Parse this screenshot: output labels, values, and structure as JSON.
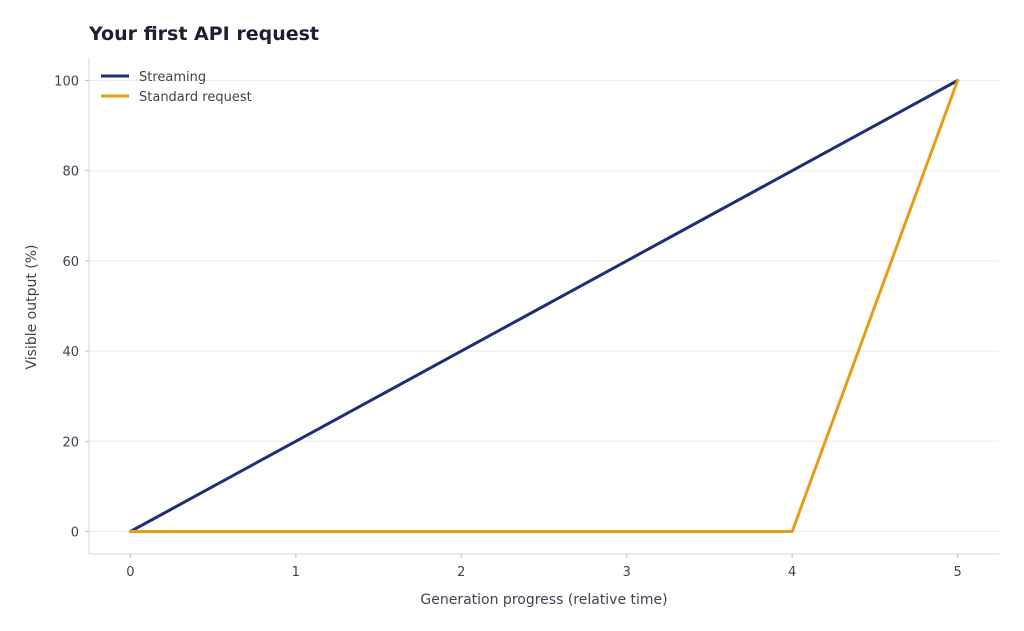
{
  "chart_data": {
    "type": "line",
    "title": "Your first API request",
    "xlabel": "Generation progress (relative time)",
    "ylabel": "Visible output (%)",
    "xlim": [
      -0.25,
      5.25
    ],
    "ylim": [
      -5,
      105
    ],
    "xticks": [
      0,
      1,
      2,
      3,
      4,
      5
    ],
    "yticks": [
      0,
      20,
      40,
      60,
      80,
      100
    ],
    "grid": "horizontal",
    "legend_position": "top-left",
    "series": [
      {
        "name": "Streaming",
        "color": "#1f2d7a",
        "x": [
          0,
          1,
          2,
          3,
          4,
          5
        ],
        "y": [
          0,
          20,
          40,
          60,
          80,
          100
        ]
      },
      {
        "name": "Standard request",
        "color": "#e69f15",
        "x": [
          0,
          1,
          2,
          3,
          4,
          5
        ],
        "y": [
          0,
          0,
          0,
          0,
          0,
          100
        ]
      }
    ]
  }
}
